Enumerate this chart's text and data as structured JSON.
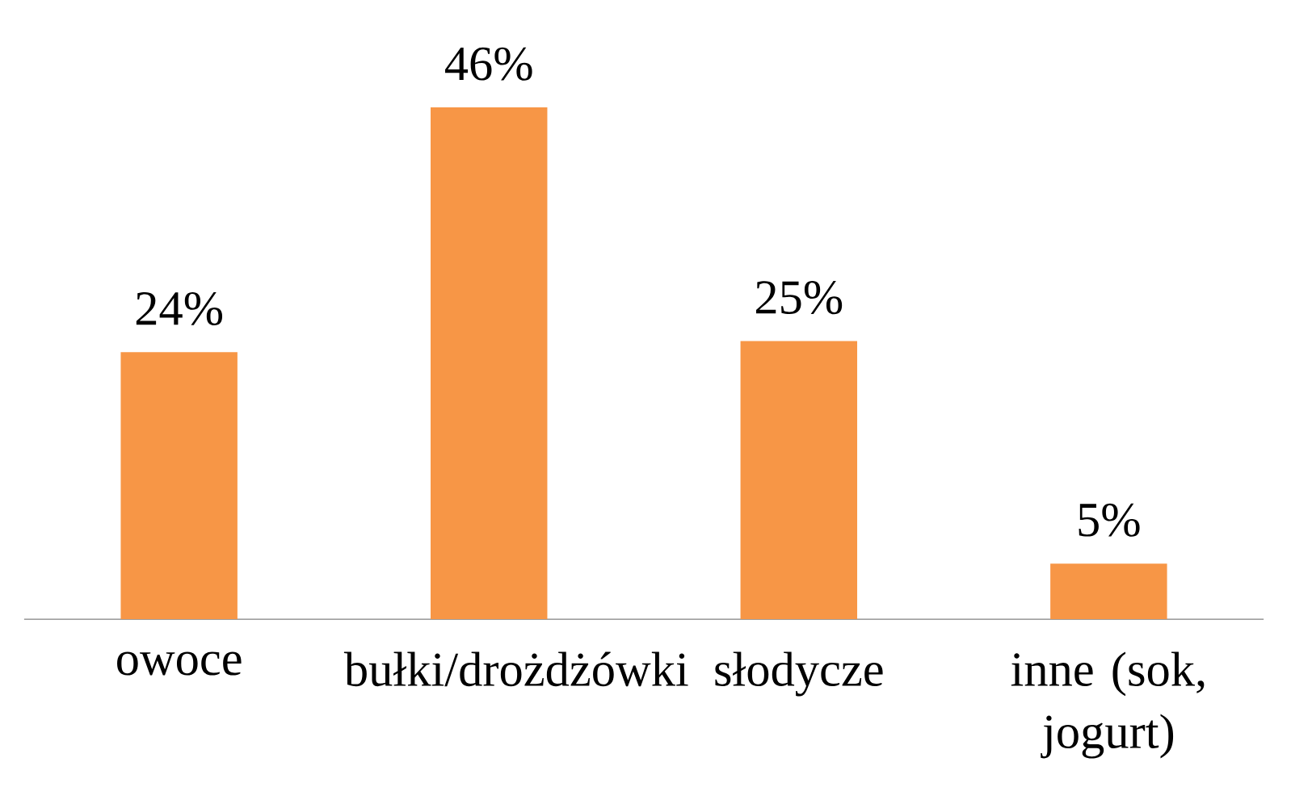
{
  "chart_data": {
    "type": "bar",
    "categories": [
      "owoce",
      "bułki/drożdżówki",
      "słodycze",
      "inne (sok, jogurt)"
    ],
    "values": [
      24,
      46,
      25,
      5
    ],
    "value_labels": [
      "24%",
      "46%",
      "25%",
      "5%"
    ],
    "color": "#f79646"
  }
}
